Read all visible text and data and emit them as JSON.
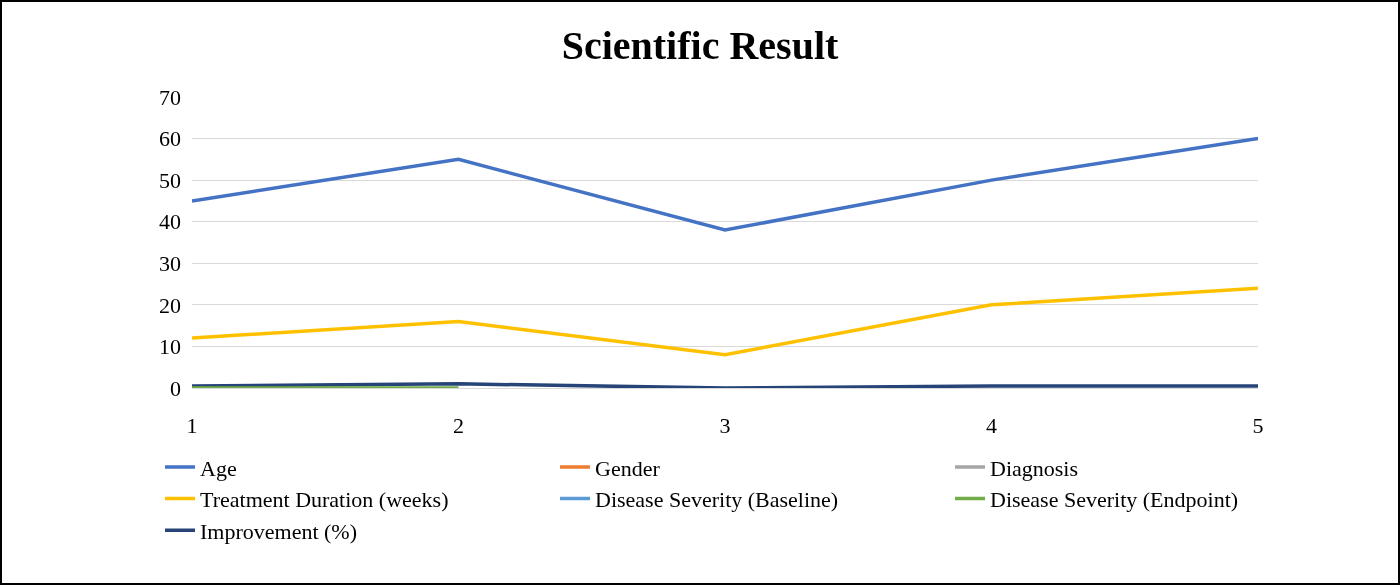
{
  "chart_data": {
    "type": "line",
    "title": "Scientific Result",
    "categories": [
      "1",
      "2",
      "3",
      "4",
      "5"
    ],
    "series": [
      {
        "name": "Age",
        "color": "#4472c4",
        "values": [
          45,
          55,
          38,
          50,
          60
        ]
      },
      {
        "name": "Gender",
        "color": "#ed7d31",
        "values": [
          null,
          null,
          null,
          null,
          null
        ]
      },
      {
        "name": "Diagnosis",
        "color": "#a5a5a5",
        "values": [
          null,
          null,
          null,
          null,
          null
        ]
      },
      {
        "name": "Treatment Duration (weeks)",
        "color": "#ffc000",
        "values": [
          12,
          16,
          8,
          20,
          24
        ]
      },
      {
        "name": "Disease Severity (Baseline)",
        "color": "#5b9bd5",
        "values": [
          null,
          null,
          null,
          null,
          null
        ]
      },
      {
        "name": "Disease Severity (Endpoint)",
        "color": "#70ad47",
        "values": [
          0,
          0,
          null,
          null,
          null
        ]
      },
      {
        "name": "Improvement (%)",
        "color": "#264478",
        "values": [
          0.5,
          1,
          0,
          0.5,
          0.5
        ]
      }
    ],
    "ylim": [
      0,
      70
    ],
    "yticks": [
      0,
      10,
      20,
      30,
      40,
      50,
      60,
      70
    ],
    "grid": "y",
    "legend": "bottom",
    "marker": "none",
    "line_style": "solid"
  }
}
